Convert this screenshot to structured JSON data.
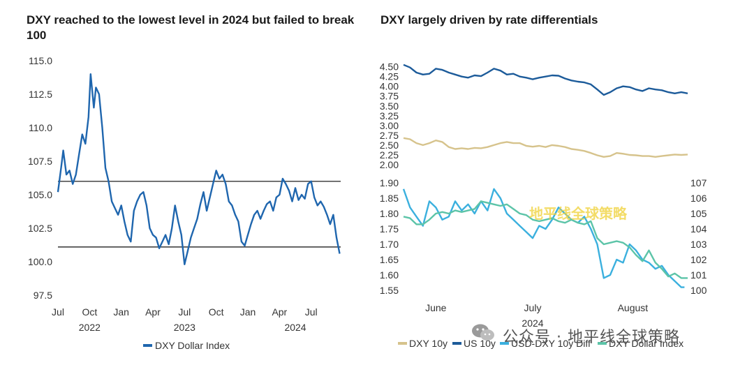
{
  "left_chart": {
    "title": "DXY reached to the lowest level in 2024 but failed to break 100",
    "legend_label": "DXY Dollar Index"
  },
  "right_chart": {
    "title": "DXY largely driven by rate differentials",
    "legend": [
      "DXY 10y",
      "US 10y",
      "USD-DXY 10y Diff",
      "DXY Dollar Index"
    ],
    "overlay_text": "地平线全球策略"
  },
  "watermark": {
    "text": "公众号 · 地平线全球策略",
    "icon": "wechat-icon"
  },
  "colors": {
    "dxy_line": "#1f66ae",
    "us10y": "#1c5b9a",
    "dxy10y": "#d6c38c",
    "usd_dxy_diff": "#3bb0de",
    "dxy_index_teal": "#5cc4a8"
  },
  "chart_data": [
    {
      "type": "line",
      "title": "DXY reached to the lowest level in 2024 but failed to break 100",
      "xlabel": "",
      "ylabel": "",
      "ylim": [
        97.5,
        115.0
      ],
      "y_ticks": [
        97.5,
        100.0,
        102.5,
        105.0,
        107.5,
        110.0,
        112.5,
        115.0
      ],
      "x_ticks": [
        "Jul",
        "Oct",
        "Jan",
        "Apr",
        "Jul",
        "Oct",
        "Jan",
        "Apr",
        "Jul"
      ],
      "x_tick_positions": [
        0,
        3,
        6,
        9,
        12,
        15,
        18,
        21,
        24
      ],
      "year_labels": [
        {
          "label": "2022",
          "x": 3
        },
        {
          "label": "2023",
          "x": 12
        },
        {
          "label": "2024",
          "x": 22.5
        }
      ],
      "xlim": [
        0,
        26.8
      ],
      "reference_lines": [
        106.0,
        101.1
      ],
      "grid": false,
      "legend_position": "bottom",
      "series": [
        {
          "name": "DXY Dollar Index",
          "x": [
            0,
            0.3,
            0.5,
            0.8,
            1.1,
            1.4,
            1.7,
            2.0,
            2.3,
            2.6,
            2.9,
            3.1,
            3.4,
            3.6,
            3.9,
            4.2,
            4.5,
            4.8,
            5.1,
            5.4,
            5.7,
            6.0,
            6.3,
            6.6,
            6.9,
            7.2,
            7.5,
            7.8,
            8.1,
            8.4,
            8.7,
            9.0,
            9.3,
            9.6,
            9.9,
            10.2,
            10.5,
            10.8,
            11.1,
            11.4,
            11.7,
            12.0,
            12.3,
            12.6,
            12.9,
            13.2,
            13.5,
            13.8,
            14.1,
            14.4,
            14.7,
            15.0,
            15.3,
            15.6,
            15.9,
            16.2,
            16.5,
            16.8,
            17.1,
            17.4,
            17.7,
            18.0,
            18.3,
            18.6,
            18.9,
            19.2,
            19.5,
            19.8,
            20.1,
            20.4,
            20.7,
            21.0,
            21.3,
            21.6,
            21.9,
            22.2,
            22.5,
            22.8,
            23.1,
            23.4,
            23.7,
            24.0,
            24.3,
            24.6,
            24.9,
            25.2,
            25.5,
            25.8,
            26.1,
            26.4,
            26.7
          ],
          "values": [
            105.2,
            107.0,
            108.3,
            106.5,
            106.8,
            105.8,
            106.5,
            108.0,
            109.5,
            108.8,
            110.8,
            114.0,
            111.5,
            113.0,
            112.5,
            110.0,
            107.0,
            106.0,
            104.5,
            104.0,
            103.5,
            104.2,
            103.0,
            102.0,
            101.5,
            103.8,
            104.5,
            105.0,
            105.2,
            104.2,
            102.5,
            102.0,
            101.8,
            101.0,
            101.5,
            102.0,
            101.3,
            102.5,
            104.2,
            103.0,
            102.0,
            99.8,
            100.8,
            101.8,
            102.5,
            103.2,
            104.3,
            105.2,
            103.8,
            104.8,
            105.8,
            106.8,
            106.2,
            106.5,
            105.8,
            104.5,
            104.2,
            103.5,
            103.0,
            101.5,
            101.2,
            102.0,
            102.8,
            103.5,
            103.8,
            103.2,
            103.8,
            104.3,
            104.5,
            103.8,
            104.8,
            105.0,
            106.2,
            105.8,
            105.3,
            104.5,
            105.5,
            104.6,
            105.0,
            104.7,
            105.8,
            106.0,
            104.8,
            104.2,
            104.5,
            104.1,
            103.5,
            102.8,
            103.5,
            101.8,
            100.6
          ]
        }
      ]
    },
    {
      "type": "line",
      "title": "DXY largely driven by rate differentials",
      "xlabel": "",
      "ylabel": "",
      "x_ticks": [
        "June",
        "July",
        "August"
      ],
      "x_tick_positions": [
        10,
        40,
        71
      ],
      "year_label": "2024",
      "xlim": [
        0,
        88
      ],
      "upper_panel": {
        "ylim": [
          2.0,
          4.6
        ],
        "y_ticks": [
          2.0,
          2.25,
          2.5,
          2.75,
          3.0,
          3.25,
          3.5,
          3.75,
          4.0,
          4.25,
          4.5
        ]
      },
      "lower_panel": {
        "ylim_left": [
          1.55,
          1.9
        ],
        "y_ticks_left": [
          1.55,
          1.6,
          1.65,
          1.7,
          1.75,
          1.8,
          1.85,
          1.9
        ],
        "ylim_right": [
          100,
          107
        ],
        "y_ticks_right": [
          100,
          101,
          102,
          103,
          104,
          105,
          106,
          107
        ]
      },
      "grid": false,
      "legend_position": "bottom",
      "series": [
        {
          "name": "US 10y",
          "panel": "upper",
          "x": [
            0,
            2,
            4,
            6,
            8,
            10,
            12,
            14,
            16,
            18,
            20,
            22,
            24,
            26,
            28,
            30,
            32,
            34,
            36,
            38,
            40,
            42,
            44,
            46,
            48,
            50,
            52,
            54,
            56,
            58,
            60,
            62,
            64,
            66,
            68,
            70,
            72,
            74,
            76,
            78,
            80,
            82,
            84,
            86,
            88
          ],
          "values": [
            4.55,
            4.48,
            4.35,
            4.3,
            4.32,
            4.45,
            4.42,
            4.35,
            4.3,
            4.25,
            4.22,
            4.28,
            4.26,
            4.35,
            4.45,
            4.4,
            4.3,
            4.32,
            4.25,
            4.22,
            4.18,
            4.22,
            4.25,
            4.28,
            4.27,
            4.2,
            4.15,
            4.12,
            4.1,
            4.05,
            3.92,
            3.78,
            3.85,
            3.95,
            4.0,
            3.98,
            3.92,
            3.88,
            3.95,
            3.92,
            3.9,
            3.85,
            3.82,
            3.85,
            3.82
          ]
        },
        {
          "name": "DXY 10y",
          "panel": "upper",
          "x": [
            0,
            2,
            4,
            6,
            8,
            10,
            12,
            14,
            16,
            18,
            20,
            22,
            24,
            26,
            28,
            30,
            32,
            34,
            36,
            38,
            40,
            42,
            44,
            46,
            48,
            50,
            52,
            54,
            56,
            58,
            60,
            62,
            64,
            66,
            68,
            70,
            72,
            74,
            76,
            78,
            80,
            82,
            84,
            86,
            88
          ],
          "values": [
            2.68,
            2.65,
            2.55,
            2.5,
            2.55,
            2.62,
            2.58,
            2.45,
            2.4,
            2.42,
            2.4,
            2.43,
            2.42,
            2.45,
            2.5,
            2.55,
            2.58,
            2.55,
            2.55,
            2.48,
            2.46,
            2.48,
            2.45,
            2.5,
            2.48,
            2.45,
            2.4,
            2.38,
            2.35,
            2.3,
            2.24,
            2.2,
            2.22,
            2.3,
            2.28,
            2.25,
            2.24,
            2.22,
            2.22,
            2.2,
            2.22,
            2.24,
            2.26,
            2.25,
            2.26
          ]
        },
        {
          "name": "USD-DXY 10y Diff",
          "panel": "lower",
          "axis": "left",
          "x": [
            0,
            2,
            4,
            6,
            8,
            10,
            12,
            14,
            16,
            18,
            20,
            22,
            24,
            26,
            28,
            30,
            32,
            34,
            36,
            38,
            40,
            42,
            44,
            46,
            48,
            50,
            52,
            54,
            56,
            58,
            60,
            62,
            64,
            66,
            68,
            70,
            72,
            74,
            76,
            78,
            80,
            82,
            84,
            86,
            87
          ],
          "values": [
            1.88,
            1.82,
            1.79,
            1.76,
            1.84,
            1.82,
            1.78,
            1.79,
            1.84,
            1.81,
            1.83,
            1.8,
            1.84,
            1.81,
            1.88,
            1.85,
            1.8,
            1.78,
            1.76,
            1.74,
            1.72,
            1.76,
            1.75,
            1.78,
            1.82,
            1.8,
            1.78,
            1.77,
            1.79,
            1.75,
            1.7,
            1.59,
            1.6,
            1.65,
            1.64,
            1.7,
            1.68,
            1.65,
            1.64,
            1.62,
            1.63,
            1.6,
            1.58,
            1.56,
            1.56
          ]
        },
        {
          "name": "DXY Dollar Index",
          "panel": "lower",
          "axis": "right",
          "x": [
            0,
            2,
            4,
            6,
            8,
            10,
            12,
            14,
            16,
            18,
            20,
            22,
            24,
            26,
            28,
            30,
            32,
            34,
            36,
            38,
            40,
            42,
            44,
            46,
            48,
            50,
            52,
            54,
            56,
            58,
            60,
            62,
            64,
            66,
            68,
            70,
            72,
            74,
            76,
            78,
            80,
            82,
            84,
            86,
            88
          ],
          "values": [
            104.8,
            104.7,
            104.3,
            104.3,
            104.6,
            105.0,
            105.1,
            105.0,
            105.2,
            105.1,
            105.2,
            105.3,
            105.8,
            105.7,
            105.6,
            105.5,
            105.6,
            105.3,
            105.0,
            104.9,
            104.6,
            104.5,
            104.6,
            104.7,
            104.5,
            104.4,
            104.6,
            104.4,
            104.3,
            104.5,
            103.4,
            103.0,
            103.1,
            103.2,
            103.1,
            102.8,
            102.3,
            101.9,
            102.6,
            101.8,
            101.4,
            100.9,
            101.1,
            100.8,
            100.8
          ]
        }
      ]
    }
  ]
}
